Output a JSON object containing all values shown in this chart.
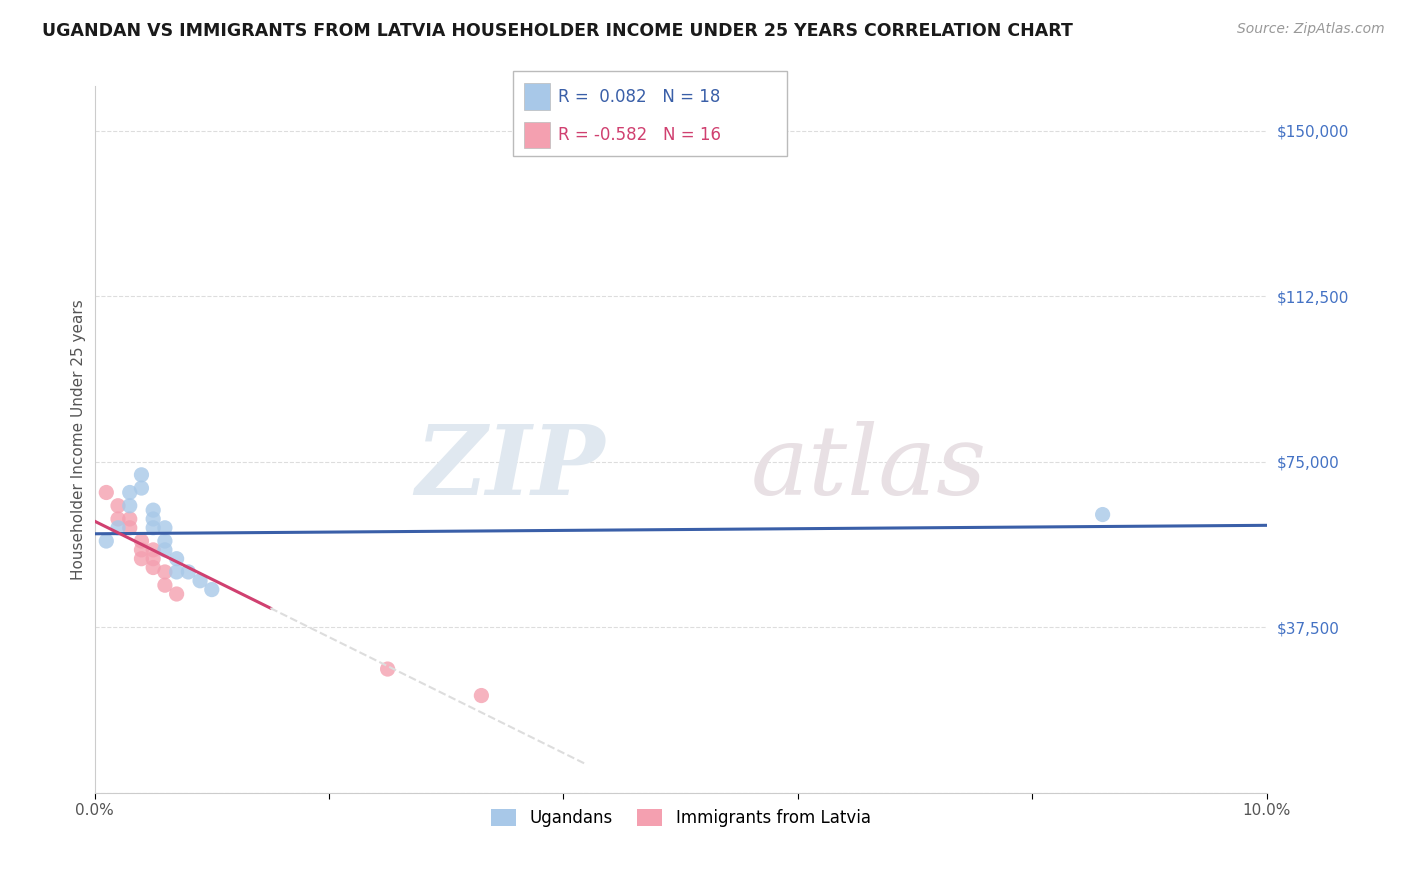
{
  "title": "UGANDAN VS IMMIGRANTS FROM LATVIA HOUSEHOLDER INCOME UNDER 25 YEARS CORRELATION CHART",
  "source": "Source: ZipAtlas.com",
  "ylabel": "Householder Income Under 25 years",
  "xlim": [
    0.0,
    0.1
  ],
  "ylim": [
    0,
    160000
  ],
  "yticks": [
    0,
    37500,
    75000,
    112500,
    150000
  ],
  "ytick_labels": [
    "",
    "$37,500",
    "$75,000",
    "$112,500",
    "$150,000"
  ],
  "xticks": [
    0.0,
    0.02,
    0.04,
    0.06,
    0.08,
    0.1
  ],
  "xtick_labels": [
    "0.0%",
    "",
    "",
    "",
    "",
    "10.0%"
  ],
  "ugandan_color": "#a8c8e8",
  "latvia_color": "#f4a0b0",
  "ugandan_R": 0.082,
  "ugandan_N": 18,
  "latvia_R": -0.582,
  "latvia_N": 16,
  "ugandan_x": [
    0.001,
    0.002,
    0.003,
    0.003,
    0.004,
    0.004,
    0.005,
    0.005,
    0.005,
    0.006,
    0.006,
    0.006,
    0.007,
    0.007,
    0.008,
    0.009,
    0.01,
    0.086
  ],
  "ugandan_y": [
    57000,
    60000,
    68000,
    65000,
    72000,
    69000,
    62000,
    64000,
    60000,
    60000,
    57000,
    55000,
    53000,
    50000,
    50000,
    48000,
    46000,
    63000
  ],
  "latvia_x": [
    0.001,
    0.002,
    0.002,
    0.003,
    0.003,
    0.004,
    0.004,
    0.004,
    0.005,
    0.005,
    0.005,
    0.006,
    0.006,
    0.007,
    0.025,
    0.033
  ],
  "latvia_y": [
    68000,
    65000,
    62000,
    62000,
    60000,
    57000,
    55000,
    53000,
    55000,
    53000,
    51000,
    50000,
    47000,
    45000,
    28000,
    22000
  ],
  "bg_color": "#ffffff",
  "grid_color": "#dddddd",
  "watermark_zip": "ZIP",
  "watermark_atlas": "atlas",
  "trendline_ugandan_color": "#3a5fa8",
  "trendline_latvia_color": "#d04070",
  "ytick_color": "#4472c4",
  "legend_border_color": "#bbbbbb"
}
